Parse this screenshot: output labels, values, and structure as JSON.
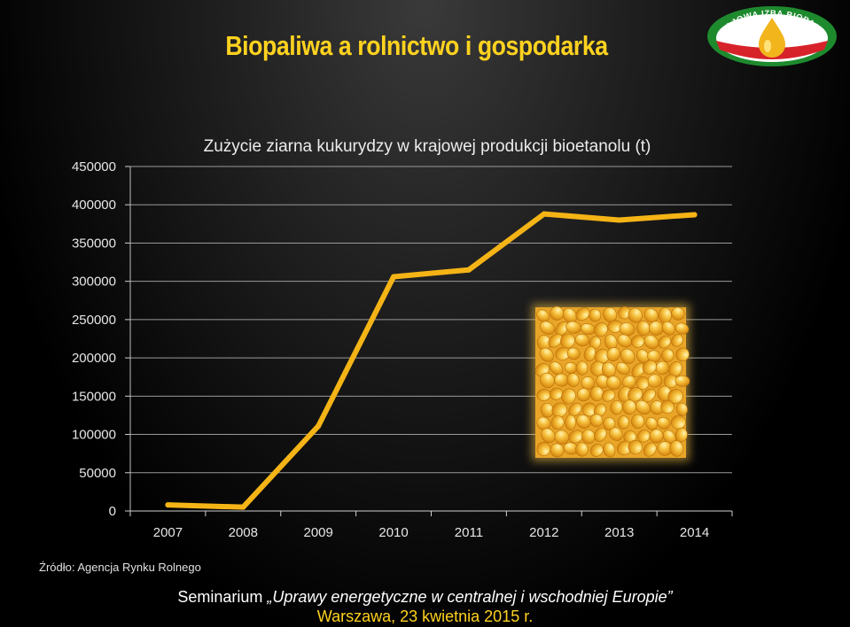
{
  "slide": {
    "title": "Biopaliwa a rolnictwo i gospodarka",
    "logo_text": "KRAJOWA IZBA BIOPALIW",
    "source": "Źródło: Agencja Rynku Rolnego",
    "footer_prefix": "Seminarium ",
    "footer_italic": "„Uprawy energetyczne w centralnej i wschodniej Europie”",
    "footer_place": "Warszawa, 23 kwietnia 2015 r."
  },
  "colors": {
    "accent": "#ffd21f",
    "line": "#f5b416",
    "background": "#000000"
  },
  "chart_data": {
    "type": "line",
    "title": "Zużycie ziarna kukurydzy w krajowej produkcji bioetanolu (t)",
    "xlabel": "",
    "ylabel": "",
    "categories": [
      "2007",
      "2008",
      "2009",
      "2010",
      "2011",
      "2012",
      "2013",
      "2014"
    ],
    "series": [
      {
        "values": [
          8000,
          5000,
          111000,
          306000,
          315000,
          388000,
          380000,
          387000
        ]
      }
    ],
    "ylim": [
      0,
      450000
    ],
    "yticks": [
      "0",
      "50000",
      "100000",
      "150000",
      "200000",
      "250000",
      "300000",
      "350000",
      "400000",
      "450000"
    ],
    "grid": true,
    "legend": "none"
  }
}
